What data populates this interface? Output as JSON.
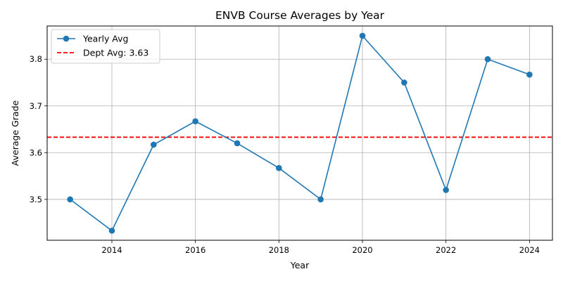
{
  "chart_data": {
    "type": "line",
    "title": "ENVB Course Averages by Year",
    "xlabel": "Year",
    "ylabel": "Average Grade",
    "xlim": [
      2012.45,
      2024.55
    ],
    "ylim": [
      3.4125,
      3.871
    ],
    "xticks": [
      2014,
      2016,
      2018,
      2020,
      2022,
      2024
    ],
    "yticks": [
      3.5,
      3.6,
      3.7,
      3.8
    ],
    "grid": true,
    "legend_position": "top-left",
    "series": [
      {
        "name": "Yearly Avg",
        "color": "#1f77b4",
        "marker": "circle",
        "x": [
          2013,
          2014,
          2015,
          2016,
          2017,
          2018,
          2019,
          2020,
          2021,
          2022,
          2023,
          2024
        ],
        "y": [
          3.5,
          3.433,
          3.617,
          3.667,
          3.62,
          3.567,
          3.5,
          3.85,
          3.75,
          3.52,
          3.8,
          3.767
        ]
      }
    ],
    "reference_lines": [
      {
        "name": "Dept Avg: 3.63",
        "y": 3.633,
        "color": "#ff0000",
        "style": "dashed"
      }
    ]
  }
}
